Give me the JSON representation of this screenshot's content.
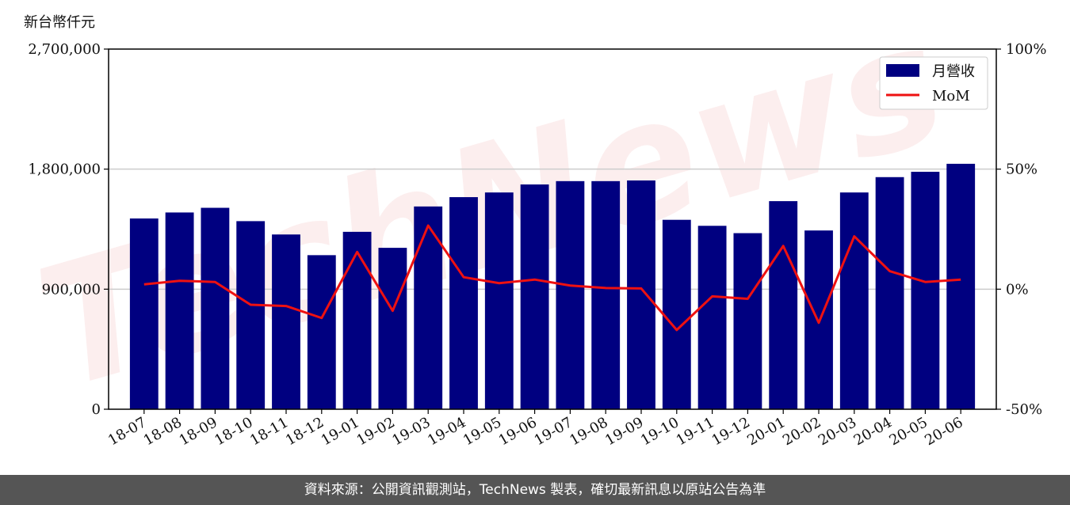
{
  "unit_label": "新台幣仟元",
  "footer": "資料來源：公開資訊觀測站，TechNews 製表，確切最新訊息以原站公告為準",
  "watermark": "TechNews",
  "colors": {
    "bar": "#000080",
    "line": "#ee1111",
    "grid": "#cccccc",
    "footer_bg": "#555555"
  },
  "chart_data": {
    "type": "bar",
    "categories": [
      "18-07",
      "18-08",
      "18-09",
      "18-10",
      "18-11",
      "18-12",
      "19-01",
      "19-02",
      "19-03",
      "19-04",
      "19-05",
      "19-06",
      "19-07",
      "19-08",
      "19-09",
      "19-10",
      "19-11",
      "19-12",
      "20-01",
      "20-02",
      "20-03",
      "20-04",
      "20-05",
      "20-06"
    ],
    "series": [
      {
        "name": "月營收",
        "type": "bar",
        "axis": "left",
        "values": [
          1430000,
          1475000,
          1510000,
          1410000,
          1310000,
          1155000,
          1330000,
          1210000,
          1520000,
          1590000,
          1625000,
          1685000,
          1710000,
          1710000,
          1715000,
          1420000,
          1375000,
          1320000,
          1560000,
          1340000,
          1625000,
          1740000,
          1780000,
          1840000
        ]
      },
      {
        "name": "MoM",
        "type": "line",
        "axis": "right",
        "unit": "%",
        "values": [
          2,
          3.5,
          3,
          -6.5,
          -7,
          -12,
          15.5,
          -9,
          26.5,
          5,
          2.5,
          4,
          1.5,
          0.5,
          0.3,
          -17,
          -3,
          -4,
          18,
          -14,
          22,
          7.5,
          3,
          4
        ]
      }
    ],
    "y_left": {
      "ylim": [
        0,
        2700000
      ],
      "ticks": [
        "0",
        "900,000",
        "1,800,000",
        "2,700,000"
      ],
      "tick_values": [
        0,
        900000,
        1800000,
        2700000
      ]
    },
    "y_right": {
      "ylim": [
        -50,
        100
      ],
      "ticks": [
        "-50%",
        "0%",
        "50%",
        "100%"
      ],
      "tick_values": [
        -50,
        0,
        50,
        100
      ]
    },
    "grid": true,
    "legend": "top-right"
  }
}
